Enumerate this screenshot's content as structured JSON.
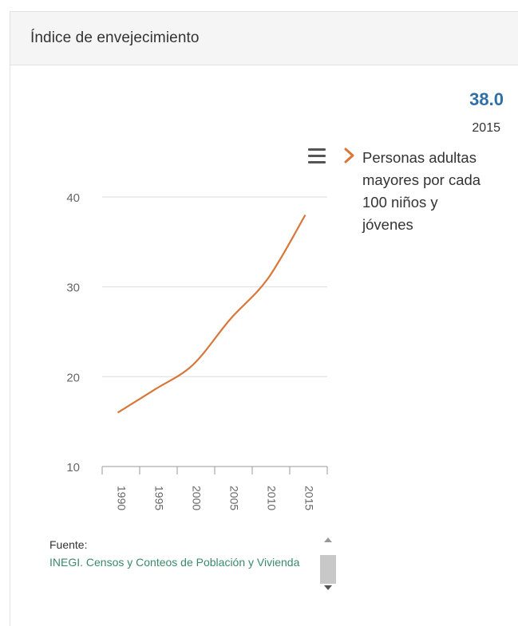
{
  "panel": {
    "title": "Índice de envejecimiento"
  },
  "kpi": {
    "value": "38.0",
    "year": "2015"
  },
  "legend": {
    "arrow_icon": "chevron-right-icon",
    "label": "Personas adultas mayores por cada 100 niños y jóvenes"
  },
  "menu": {
    "icon": "hamburger-menu-icon"
  },
  "source": {
    "label": "Fuente:",
    "link_text": "INEGI. Censos y Conteos de Población y Vivienda"
  },
  "colors": {
    "line": "#d9773a",
    "kpi": "#2f6fa8",
    "link": "#3a8a6a",
    "grid": "#e6e6e6"
  },
  "chart_data": {
    "type": "line",
    "x": [
      "1990",
      "1995",
      "2000",
      "2005",
      "2010",
      "2015"
    ],
    "series": [
      {
        "name": "Personas adultas mayores por cada 100 niños y jóvenes",
        "values": [
          16.0,
          18.6,
          21.3,
          26.4,
          30.9,
          38.0
        ]
      }
    ],
    "yticks": [
      10,
      20,
      30,
      40
    ],
    "ylim": [
      10,
      40
    ],
    "grid": true,
    "legend_position": "right"
  }
}
